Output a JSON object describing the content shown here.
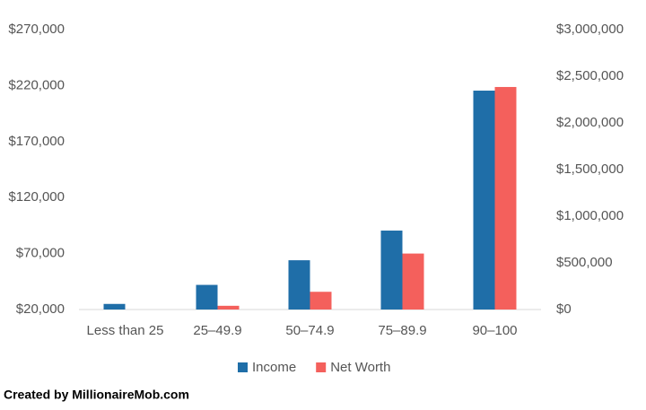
{
  "chart_data": {
    "type": "bar",
    "categories": [
      "Less than 25",
      "25–49.9",
      "50–74.9",
      "75–89.9",
      "90–100"
    ],
    "series": [
      {
        "name": "Income",
        "color": "#1f6ea8",
        "values": [
          25000,
          42000,
          64000,
          90500,
          215500
        ]
      },
      {
        "name": "Net Worth",
        "color": "#f4605c",
        "axis": "y2",
        "values": [
          0,
          40000,
          190000,
          600000,
          2385000
        ]
      }
    ],
    "ylim": [
      20000,
      270000
    ],
    "yticks": [
      {
        "value": 20000,
        "label": "$20,000"
      },
      {
        "value": 70000,
        "label": "$70,000"
      },
      {
        "value": 120000,
        "label": "$120,000"
      },
      {
        "value": 170000,
        "label": "$170,000"
      },
      {
        "value": 220000,
        "label": "$220,000"
      },
      {
        "value": 270000,
        "label": "$270,000"
      }
    ],
    "y2lim": [
      0,
      3000000
    ],
    "y2ticks": [
      {
        "value": 0,
        "label": "$0"
      },
      {
        "value": 500000,
        "label": "$500,000"
      },
      {
        "value": 1000000,
        "label": "$1,000,000"
      },
      {
        "value": 1500000,
        "label": "$1,500,000"
      },
      {
        "value": 2000000,
        "label": "$2,000,000"
      },
      {
        "value": 2500000,
        "label": "$2,500,000"
      },
      {
        "value": 3000000,
        "label": "$3,000,000"
      }
    ],
    "grid": false,
    "legend": "bottom"
  },
  "footer": "Created by MillionaireMob.com"
}
